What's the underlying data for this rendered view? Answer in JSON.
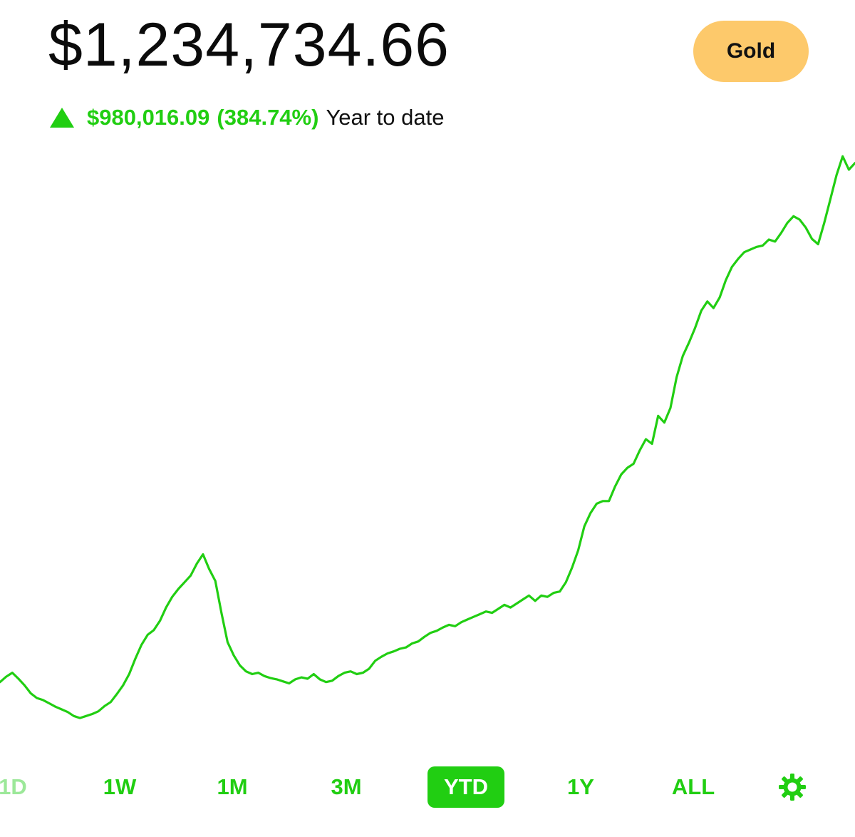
{
  "header": {
    "balance": "$1,234,734.66",
    "gold_label": "Gold",
    "change_amount": "$980,016.09",
    "change_percent": "(384.74%)",
    "change_period": "Year to date",
    "direction_icon": "up-triangle-icon"
  },
  "colors": {
    "accent": "#21ce12",
    "gold": "#fdc96b",
    "text": "#0b0b0b"
  },
  "range_tabs": [
    {
      "label": "1D",
      "state": "faded"
    },
    {
      "label": "1W",
      "state": "normal"
    },
    {
      "label": "1M",
      "state": "normal"
    },
    {
      "label": "3M",
      "state": "normal"
    },
    {
      "label": "YTD",
      "state": "selected"
    },
    {
      "label": "1Y",
      "state": "normal"
    },
    {
      "label": "ALL",
      "state": "normal"
    },
    {
      "label": "",
      "icon": "gear-icon"
    }
  ],
  "chart_data": {
    "type": "line",
    "title": "",
    "xlabel": "",
    "ylabel": "",
    "series": [
      {
        "values": [
          300,
          308,
          314,
          305,
          295,
          283,
          276,
          273,
          268,
          263,
          259,
          255,
          249,
          246,
          249,
          252,
          256,
          264,
          270,
          282,
          295,
          312,
          335,
          356,
          371,
          378,
          392,
          412,
          428,
          440,
          450,
          460,
          478,
          492,
          470,
          452,
          404,
          360,
          340,
          325,
          316,
          312,
          314,
          309,
          306,
          304,
          301,
          298,
          304,
          307,
          305,
          312,
          304,
          300,
          302,
          309,
          314,
          316,
          312,
          314,
          320,
          332,
          338,
          343,
          346,
          350,
          352,
          358,
          361,
          368,
          374,
          377,
          382,
          386,
          384,
          390,
          394,
          398,
          402,
          406,
          404,
          410,
          416,
          412,
          418,
          424,
          430,
          422,
          430,
          428,
          434,
          436,
          450,
          472,
          498,
          534,
          554,
          568,
          572,
          572,
          594,
          612,
          622,
          628,
          648,
          665,
          658,
          700,
          690,
          712,
          758,
          790,
          810,
          832,
          858,
          872,
          862,
          878,
          904,
          924,
          936,
          946,
          950,
          954,
          956,
          965,
          962,
          975,
          990,
          1000,
          995,
          983,
          966,
          958,
          990,
          1026,
          1062,
          1090,
          1070,
          1080
        ]
      }
    ],
    "ylim": [
      200,
      1100
    ],
    "grid": false,
    "legend": "none"
  }
}
